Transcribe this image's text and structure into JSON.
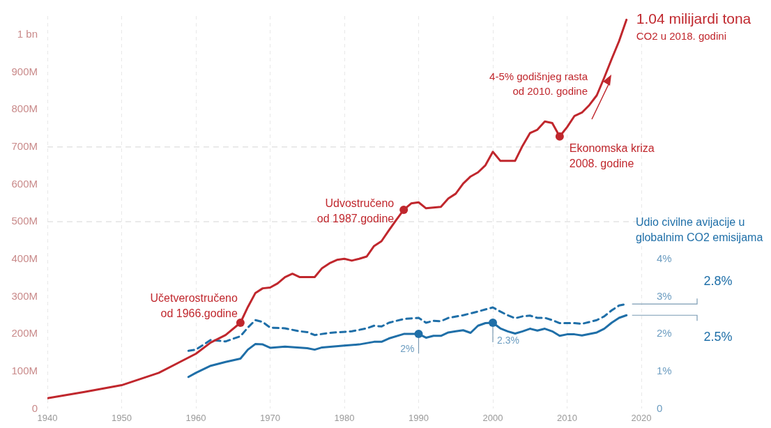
{
  "chart_data": {
    "type": "line",
    "xlim": [
      1940,
      2020
    ],
    "xticks": [
      1940,
      1950,
      1960,
      1970,
      1980,
      1990,
      2000,
      2010,
      2020
    ],
    "ylim": [
      0,
      1050000000.0
    ],
    "yticks": [
      {
        "value": 0,
        "label": "0"
      },
      {
        "value": 100000000.0,
        "label": "100M"
      },
      {
        "value": 200000000.0,
        "label": "200M"
      },
      {
        "value": 300000000.0,
        "label": "300M"
      },
      {
        "value": 400000000.0,
        "label": "400M"
      },
      {
        "value": 500000000.0,
        "label": "500M"
      },
      {
        "value": 600000000.0,
        "label": "600M"
      },
      {
        "value": 700000000.0,
        "label": "700M"
      },
      {
        "value": 800000000.0,
        "label": "800M"
      },
      {
        "value": 900000000.0,
        "label": "900M"
      },
      {
        "value": 1000000000.0,
        "label": "1 bn"
      }
    ],
    "y2lim": [
      0,
      10.5
    ],
    "y2ticks": [
      {
        "value": 0,
        "label": "0"
      },
      {
        "value": 1,
        "label": "1%"
      },
      {
        "value": 2,
        "label": "2%"
      },
      {
        "value": 3,
        "label": "3%"
      },
      {
        "value": 4,
        "label": "4%"
      }
    ],
    "y2label": "Udio civilne avijacije u\nglobalnim CO2 emisijama",
    "grid": "x",
    "legend": false,
    "marker": "none",
    "series": [
      {
        "color": "#c0272d",
        "line_style": "solid",
        "x": [
          1940,
          1945,
          1950,
          1955,
          1960,
          1962,
          1964,
          1966,
          1967,
          1968,
          1969,
          1970,
          1971,
          1972,
          1973,
          1974,
          1975,
          1976,
          1977,
          1978,
          1979,
          1980,
          1981,
          1982,
          1983,
          1984,
          1985,
          1986,
          1987,
          1988,
          1989,
          1990,
          1991,
          1992,
          1993,
          1994,
          1995,
          1996,
          1997,
          1998,
          1999,
          2000,
          2001,
          2002,
          2003,
          2004,
          2005,
          2006,
          2007,
          2008,
          2009,
          2010,
          2011,
          2012,
          2013,
          2014,
          2015,
          2016,
          2017,
          2018
        ],
        "values": [
          28000000.0,
          45000000.0,
          63000000.0,
          96000000.0,
          147000000.0,
          177000000.0,
          197000000.0,
          230000000.0,
          272000000.0,
          309000000.0,
          322000000.0,
          324000000.0,
          335000000.0,
          352000000.0,
          361000000.0,
          352000000.0,
          352000000.0,
          352000000.0,
          376000000.0,
          389000000.0,
          398000000.0,
          401000000.0,
          396000000.0,
          401000000.0,
          407000000.0,
          435000000.0,
          448000000.0,
          477000000.0,
          505000000.0,
          532000000.0,
          549000000.0,
          552000000.0,
          536000000.0,
          538000000.0,
          540000000.0,
          562000000.0,
          575000000.0,
          602000000.0,
          621000000.0,
          632000000.0,
          651000000.0,
          687000000.0,
          663000000.0,
          663000000.0,
          663000000.0,
          703000000.0,
          737000000.0,
          746000000.0,
          768000000.0,
          764000000.0,
          728000000.0,
          753000000.0,
          783000000.0,
          792000000.0,
          812000000.0,
          838000000.0,
          885000000.0,
          935000000.0,
          983000000.0,
          1040000000.0
        ]
      },
      {
        "color": "#1f6fa8",
        "axis": "y2",
        "line_style": "dashed",
        "x": [
          1959,
          1960,
          1962,
          1964,
          1966,
          1967,
          1968,
          1969,
          1970,
          1972,
          1974,
          1975,
          1976,
          1978,
          1981,
          1983,
          1984,
          1985,
          1986,
          1988,
          1990,
          1991,
          1992,
          1993,
          1994,
          1996,
          1998,
          2000,
          2001,
          2002,
          2003,
          2004,
          2005,
          2006,
          2007,
          2008,
          2009,
          2011,
          2012,
          2014,
          2015,
          2016,
          2017,
          2018
        ],
        "values": [
          1.55,
          1.58,
          1.84,
          1.8,
          1.94,
          2.17,
          2.37,
          2.32,
          2.17,
          2.15,
          2.07,
          2.05,
          1.97,
          2.03,
          2.07,
          2.15,
          2.22,
          2.2,
          2.3,
          2.4,
          2.43,
          2.3,
          2.35,
          2.34,
          2.43,
          2.5,
          2.6,
          2.71,
          2.6,
          2.5,
          2.42,
          2.47,
          2.49,
          2.43,
          2.43,
          2.37,
          2.29,
          2.29,
          2.27,
          2.37,
          2.47,
          2.63,
          2.76,
          2.8
        ],
        "value_labels": [
          null,
          null,
          null,
          null,
          null,
          null,
          null,
          null,
          null,
          null,
          null,
          null,
          null,
          null,
          null,
          null,
          null,
          null,
          null,
          null,
          null,
          null,
          null,
          null,
          null,
          null,
          null,
          null,
          null,
          null,
          null,
          null,
          null,
          null,
          null,
          null,
          null,
          null,
          null,
          null,
          null,
          null,
          null,
          "2.8%"
        ]
      },
      {
        "color": "#1f6fa8",
        "axis": "y2",
        "line_style": "solid",
        "x": [
          1959,
          1960,
          1962,
          1964,
          1966,
          1967,
          1968,
          1969,
          1970,
          1972,
          1975,
          1976,
          1977,
          1980,
          1982,
          1984,
          1985,
          1986,
          1988,
          1990,
          1991,
          1992,
          1993,
          1994,
          1995,
          1996,
          1997,
          1998,
          1999,
          2000,
          2001,
          2002,
          2003,
          2004,
          2005,
          2006,
          2007,
          2008,
          2009,
          2010,
          2011,
          2012,
          2014,
          2015,
          2016,
          2017,
          2018
        ],
        "values": [
          0.85,
          0.96,
          1.15,
          1.25,
          1.34,
          1.58,
          1.73,
          1.72,
          1.63,
          1.66,
          1.62,
          1.58,
          1.64,
          1.69,
          1.72,
          1.79,
          1.79,
          1.88,
          2.0,
          2.0,
          1.9,
          1.95,
          1.95,
          2.04,
          2.07,
          2.1,
          2.03,
          2.22,
          2.29,
          2.3,
          2.15,
          2.07,
          2.01,
          2.07,
          2.14,
          2.09,
          2.14,
          2.07,
          1.95,
          1.99,
          1.99,
          1.96,
          2.04,
          2.14,
          2.3,
          2.43,
          2.5
        ],
        "value_labels": [
          null,
          null,
          null,
          null,
          null,
          null,
          null,
          null,
          null,
          null,
          null,
          null,
          null,
          null,
          null,
          null,
          null,
          null,
          null,
          "2%",
          null,
          null,
          null,
          null,
          null,
          null,
          null,
          null,
          null,
          "2.3%",
          null,
          null,
          null,
          null,
          null,
          null,
          null,
          null,
          null,
          null,
          null,
          null,
          null,
          null,
          null,
          null,
          "2.5%"
        ]
      }
    ],
    "ref_lines": [
      {
        "axis": "y",
        "value": 500000000.0,
        "line_style": "dashed",
        "color": "#e3e3e3"
      },
      {
        "axis": "y",
        "value": 700000000.0,
        "line_style": "dashed",
        "color": "#e3e3e3"
      }
    ],
    "annotations": [
      {
        "text": "Učetverostručeno\nod 1966.godine",
        "x": 1966,
        "y": 230000000.0
      },
      {
        "text": "Udvostručeno\nod 1987.godine",
        "x": 1988,
        "y": 532000000.0
      },
      {
        "text": "Ekonomska kriza\n2008. godine",
        "x": 2009,
        "y": 728000000.0
      },
      {
        "text": "1.04 milijardi tona\nCO2 u 2018. godini",
        "x": 2018,
        "y": 1040000000.0
      },
      "4-5% godišnjeg rasta\nod 2010. godine"
    ]
  }
}
